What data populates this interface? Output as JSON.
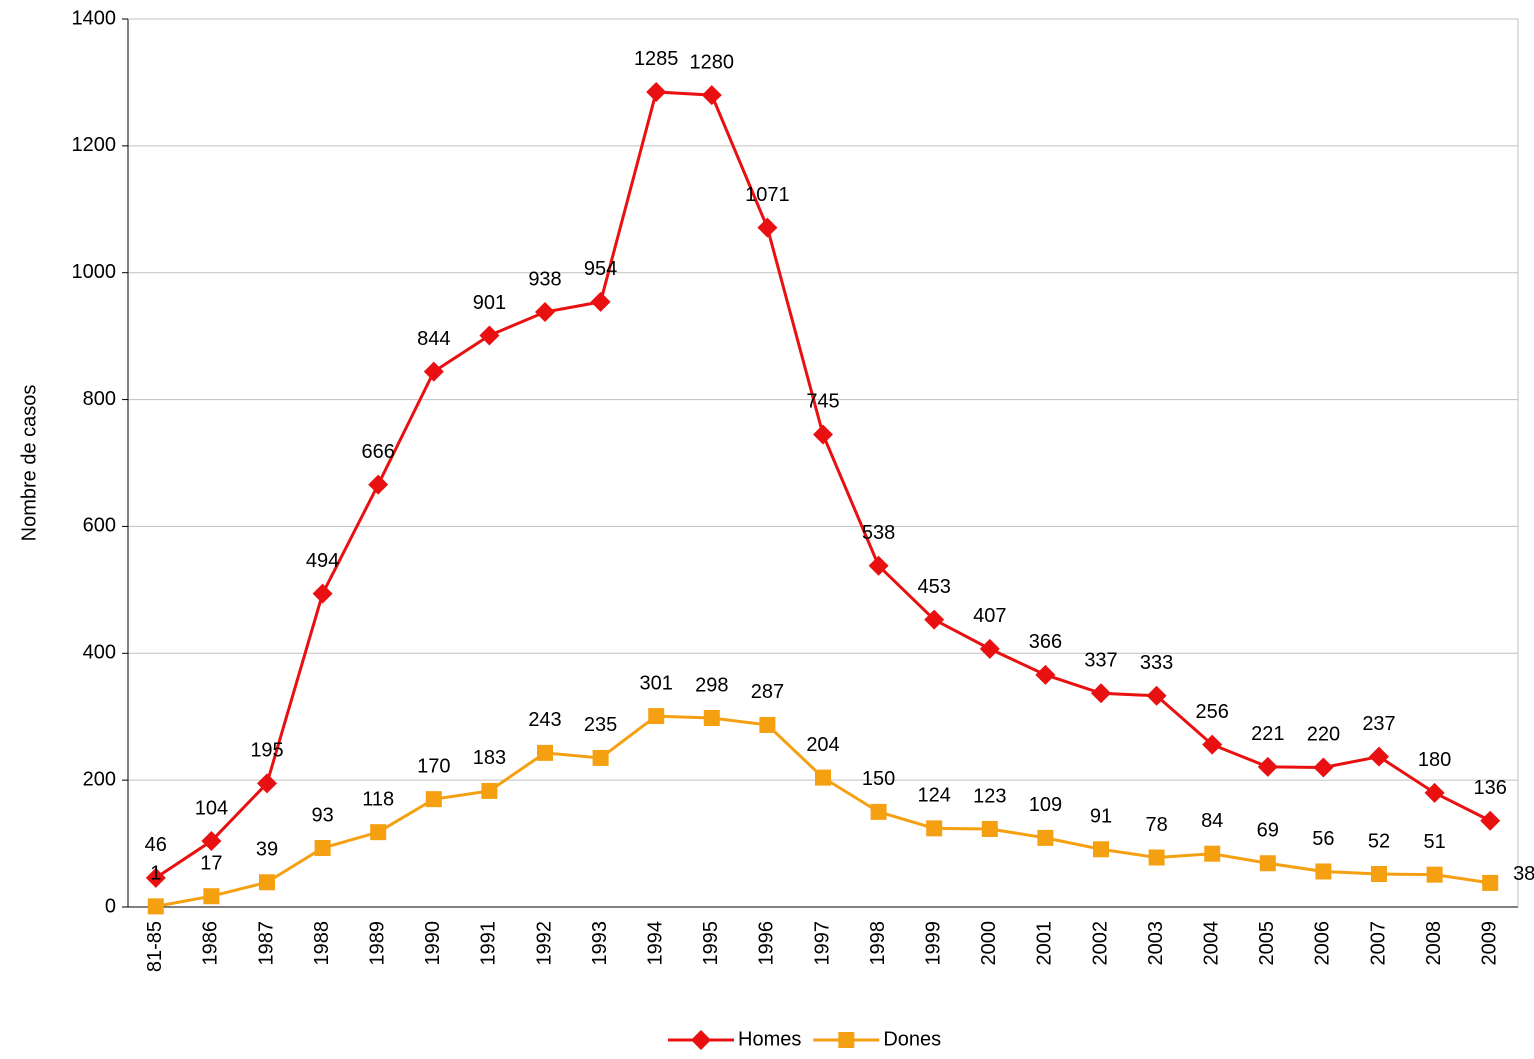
{
  "chart_data": {
    "type": "line",
    "y_label": "Nombre de casos",
    "categories": [
      "81-85",
      "1986",
      "1987",
      "1988",
      "1989",
      "1990",
      "1991",
      "1992",
      "1993",
      "1994",
      "1995",
      "1996",
      "1997",
      "1998",
      "1999",
      "2000",
      "2001",
      "2002",
      "2003",
      "2004",
      "2005",
      "2006",
      "2007",
      "2008",
      "2009"
    ],
    "series": [
      {
        "name": "Homes",
        "color": "#e81010",
        "marker": "diamond",
        "values": [
          46,
          104,
          195,
          494,
          666,
          844,
          901,
          938,
          954,
          1285,
          1280,
          1071,
          745,
          538,
          453,
          407,
          366,
          337,
          333,
          256,
          221,
          220,
          237,
          180,
          136
        ]
      },
      {
        "name": "Dones",
        "color": "#f5a011",
        "marker": "square",
        "values": [
          1,
          17,
          39,
          93,
          118,
          170,
          183,
          243,
          235,
          301,
          298,
          287,
          204,
          150,
          124,
          123,
          109,
          91,
          78,
          84,
          69,
          56,
          52,
          51,
          38
        ]
      }
    ],
    "ylim": [
      0,
      1400
    ],
    "yticks": [
      0,
      200,
      400,
      600,
      800,
      1000,
      1200,
      1400
    ],
    "grid": true,
    "legend": "bottom"
  }
}
